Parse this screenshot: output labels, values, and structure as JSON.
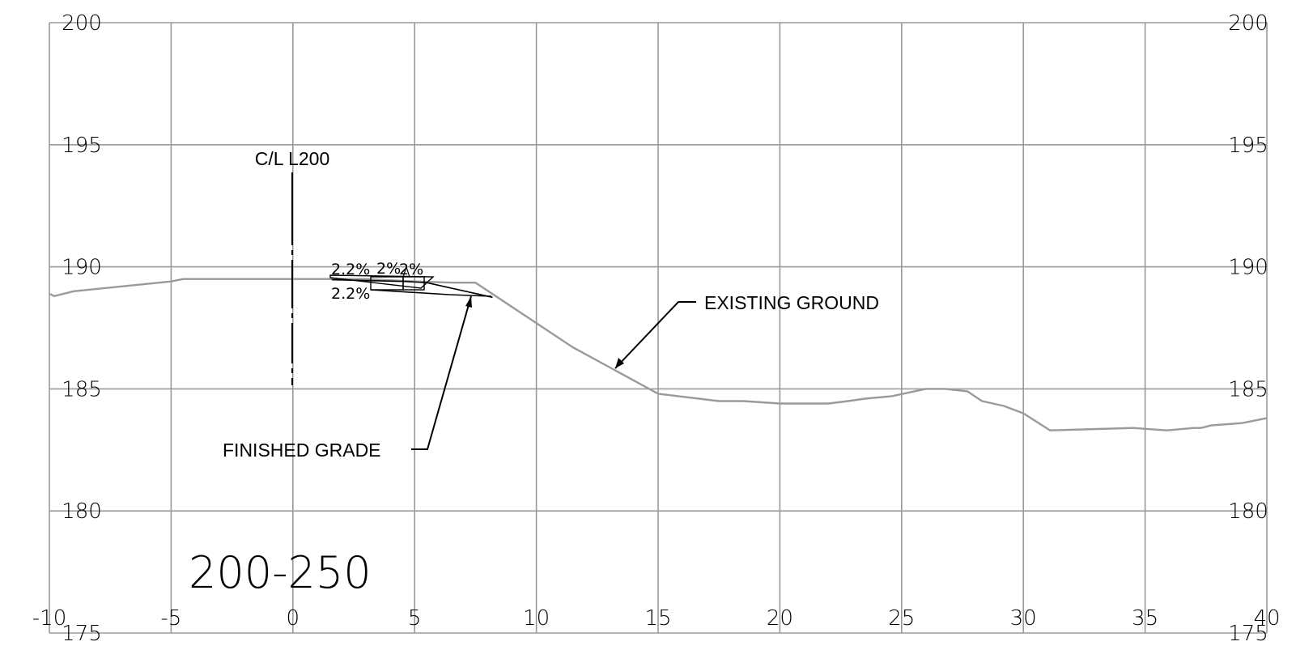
{
  "drawing": {
    "station_label": "200-250",
    "centerline_label": "C/L L200",
    "existing_ground_label": "EXISTING GROUND",
    "finished_grade_label": "FINISHED GRADE",
    "slope_labels": {
      "upper_left": "2.2%",
      "upper_right": "2%",
      "upper_right_2": "2%",
      "lower_left": "2.2%"
    },
    "colors": {
      "grid": "#9a9a9a",
      "existing_ground": "#9a9a9a",
      "finished_grade": "#000000"
    }
  },
  "chart_data": {
    "type": "line",
    "title": "",
    "xlabel": "",
    "ylabel": "",
    "xlim": [
      -10,
      40
    ],
    "ylim": [
      175,
      200
    ],
    "x_ticks": [
      "-10",
      "-5",
      "0",
      "5",
      "10",
      "15",
      "20",
      "25",
      "30",
      "35",
      "40"
    ],
    "y_ticks": [
      "175",
      "180",
      "185",
      "190",
      "195",
      "200"
    ],
    "grid": true,
    "series": [
      {
        "x": [
          -10,
          -9.8,
          -9,
          -5,
          -4.5,
          0,
          3,
          5,
          6.6,
          7.5,
          11.5,
          15,
          17.5,
          18.5,
          20,
          21,
          22,
          22.8,
          23.5,
          24.6,
          26,
          26.8,
          27.7,
          28.3,
          29.2,
          30,
          31.1,
          34.5,
          35.9,
          37,
          37.3,
          37.7,
          39,
          40
        ],
        "y": [
          188.9,
          188.8,
          189.0,
          189.4,
          189.5,
          189.5,
          189.5,
          189.4,
          189.35,
          189.35,
          186.7,
          184.8,
          184.5,
          184.5,
          184.4,
          184.4,
          184.4,
          184.5,
          184.6,
          184.7,
          185.0,
          185.0,
          184.9,
          184.5,
          184.3,
          184.0,
          183.3,
          183.4,
          183.3,
          183.4,
          183.4,
          183.5,
          183.6,
          183.8
        ]
      },
      {
        "x": [
          1.6,
          3.3,
          4.6,
          5.5,
          8.2
        ],
        "y": [
          189.47,
          189.43,
          189.4,
          189.35,
          188.75
        ]
      }
    ]
  }
}
